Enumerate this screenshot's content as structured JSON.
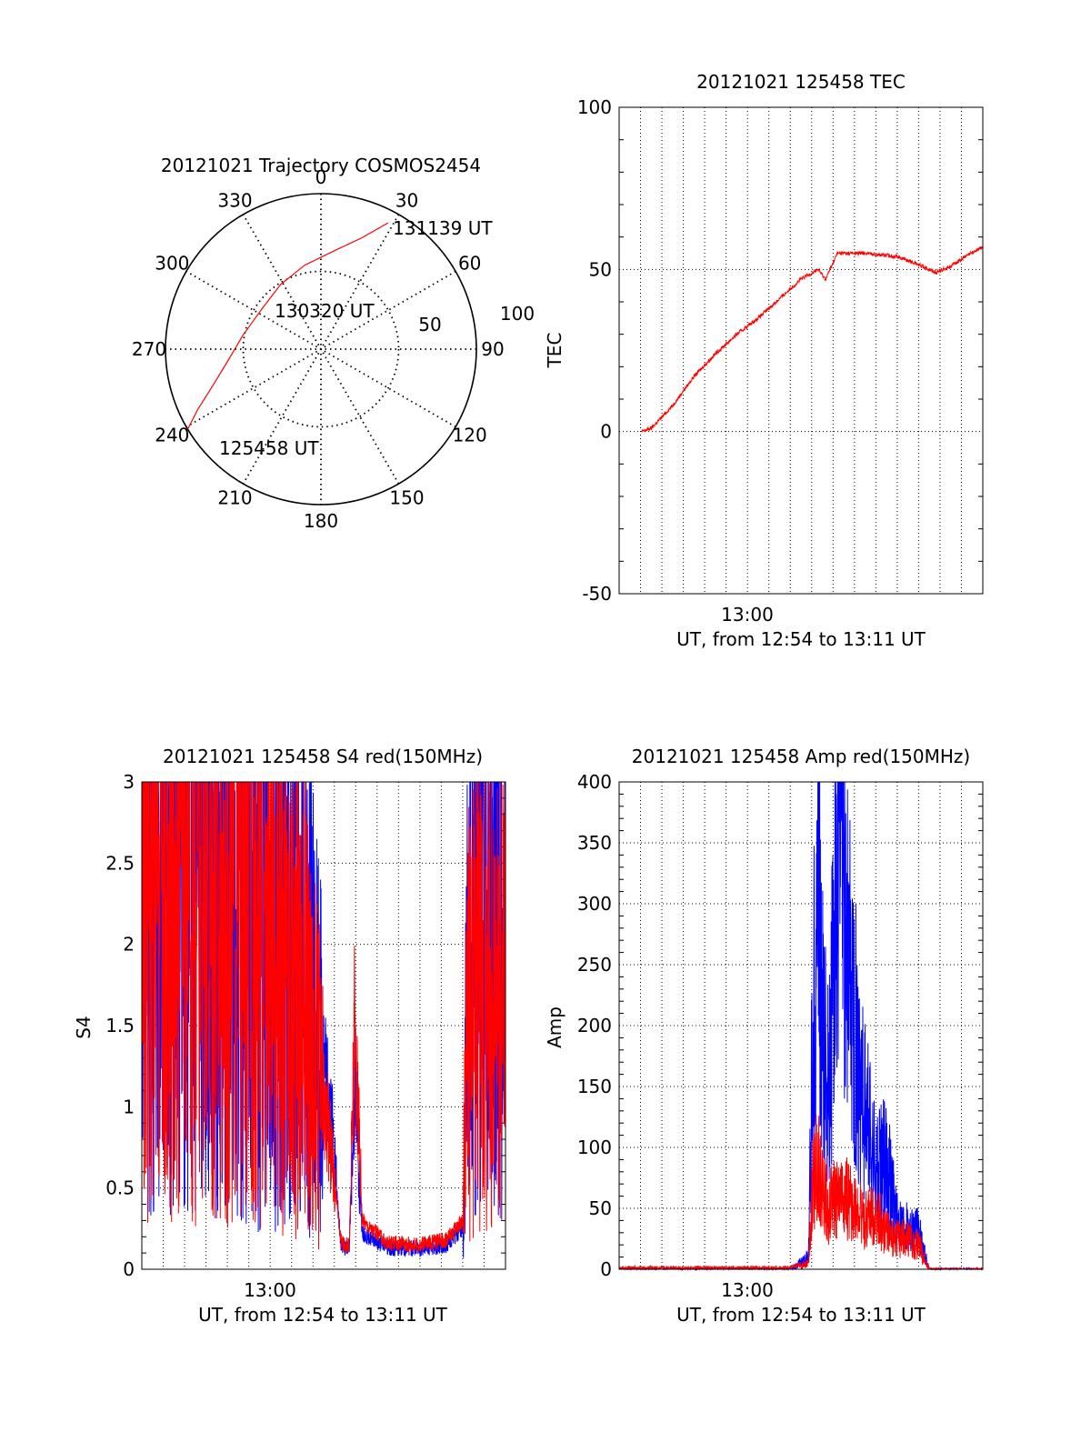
{
  "colors": {
    "red": "#ff0000",
    "blue": "#0000ff",
    "black": "#000000",
    "grid": "#000000"
  },
  "chart_data": [
    {
      "type": "polar",
      "title": "20121021 Trajectory COSMOS2454",
      "azimuth_labels": [
        "0",
        "30",
        "60",
        "90",
        "120",
        "150",
        "180",
        "210",
        "240",
        "270",
        "300",
        "330"
      ],
      "radius_labels": [
        "50",
        "100"
      ],
      "rlim": [
        0,
        100
      ],
      "rings": [
        50,
        100
      ],
      "trajectory": {
        "color": "red",
        "points": [
          {
            "az": 239,
            "r": 100
          },
          {
            "az": 244,
            "r": 88
          },
          {
            "az": 251,
            "r": 74
          },
          {
            "az": 262,
            "r": 61
          },
          {
            "az": 280,
            "r": 51
          },
          {
            "az": 303,
            "r": 46
          },
          {
            "az": 328,
            "r": 49
          },
          {
            "az": 349,
            "r": 55
          },
          {
            "az": 8,
            "r": 64
          },
          {
            "az": 20,
            "r": 76
          },
          {
            "az": 28,
            "r": 92
          }
        ]
      },
      "annotations": [
        {
          "text": "125458 UT"
        },
        {
          "text": "130320 UT"
        },
        {
          "text": "131139 UT"
        }
      ]
    },
    {
      "type": "line",
      "title": "20121021 125458 TEC",
      "xlabel": "UT, from 12:54 to 13:11 UT",
      "ylabel": "TEC",
      "xlim_minutes": [
        -7,
        10
      ],
      "ylim": [
        -50,
        100
      ],
      "yticks": [
        "100",
        "50",
        "0",
        "-50"
      ],
      "xticks": [
        "13:00"
      ],
      "grid": true,
      "series": [
        {
          "color": "red",
          "x": [
            -5.95,
            -5.5,
            -4.5,
            -3.5,
            -2.5,
            -1.5,
            -0.5,
            0.5,
            1.5,
            2.3,
            2.65,
            3.2,
            4.5,
            6.0,
            7.2,
            7.8,
            8.5,
            9.2,
            10.0
          ],
          "y": [
            0,
            1,
            8,
            17,
            24,
            30,
            35,
            41,
            47,
            50,
            47,
            55,
            55,
            54,
            51,
            49,
            51,
            54,
            57
          ]
        }
      ]
    },
    {
      "type": "line",
      "title": "20121021 125458 S4 red(150MHz)",
      "xlabel": "UT, from 12:54 to 13:11 UT",
      "ylabel": "S4",
      "xlim_minutes": [
        -7,
        10
      ],
      "ylim": [
        0,
        3
      ],
      "yticks": [
        "3",
        "2.5",
        "2",
        "1.5",
        "1",
        "0.5",
        "0"
      ],
      "xticks": [
        "13:00"
      ],
      "grid": true,
      "series": [
        {
          "color": "blue",
          "x": [
            -7.0,
            -5.5,
            -4.0,
            -2.5,
            -1.0,
            0.5,
            1.2,
            1.8,
            2.3,
            2.45,
            2.7,
            2.95,
            3.3,
            4.5,
            6.0,
            7.2,
            8.0,
            8.2,
            8.6,
            9.0,
            9.5,
            10.0
          ],
          "y": [
            2.7,
            2.6,
            2.5,
            2.35,
            2.25,
            2.0,
            1.45,
            1.0,
            0.15,
            0.13,
            0.14,
            1.2,
            0.22,
            0.13,
            0.13,
            0.14,
            0.25,
            1.6,
            2.7,
            2.8,
            2.6,
            2.6
          ]
        },
        {
          "color": "red",
          "x": [
            -7.0,
            -5.5,
            -4.0,
            -2.5,
            -1.0,
            0.5,
            1.2,
            1.8,
            2.3,
            2.45,
            2.7,
            2.95,
            3.3,
            4.5,
            6.0,
            7.2,
            8.0,
            8.2,
            8.6,
            9.0,
            9.5,
            10.0
          ],
          "y": [
            2.5,
            2.5,
            2.4,
            2.3,
            2.0,
            1.8,
            1.2,
            0.8,
            0.18,
            0.15,
            0.16,
            1.5,
            0.3,
            0.16,
            0.15,
            0.18,
            0.3,
            1.4,
            1.9,
            1.8,
            1.6,
            1.7
          ]
        }
      ]
    },
    {
      "type": "line",
      "title": "20121021 125458 Amp red(150MHz)",
      "xlabel": "UT, from 12:54 to 13:11 UT",
      "ylabel": "Amp",
      "xlim_minutes": [
        -7,
        10
      ],
      "ylim": [
        0,
        400
      ],
      "yticks": [
        "400",
        "350",
        "300",
        "250",
        "200",
        "150",
        "100",
        "50",
        "0"
      ],
      "xticks": [
        "13:00"
      ],
      "grid": true,
      "series": [
        {
          "color": "blue",
          "x": [
            -7.0,
            1.0,
            1.85,
            2.0,
            2.3,
            2.55,
            2.8,
            3.0,
            3.3,
            3.5,
            4.0,
            4.5,
            5.0,
            5.5,
            6.0,
            6.5,
            7.0,
            7.5,
            10.0
          ],
          "y": [
            0,
            0,
            10,
            150,
            330,
            180,
            150,
            230,
            385,
            280,
            200,
            130,
            80,
            90,
            40,
            35,
            30,
            0,
            0
          ]
        },
        {
          "color": "red",
          "x": [
            -7.0,
            1.0,
            1.85,
            2.0,
            2.3,
            2.55,
            2.8,
            3.0,
            3.5,
            4.0,
            4.5,
            5.0,
            5.5,
            6.0,
            6.5,
            7.0,
            7.5,
            10.0
          ],
          "y": [
            1,
            1,
            5,
            60,
            90,
            60,
            50,
            55,
            60,
            50,
            40,
            45,
            30,
            25,
            25,
            20,
            0,
            0
          ]
        }
      ]
    }
  ]
}
